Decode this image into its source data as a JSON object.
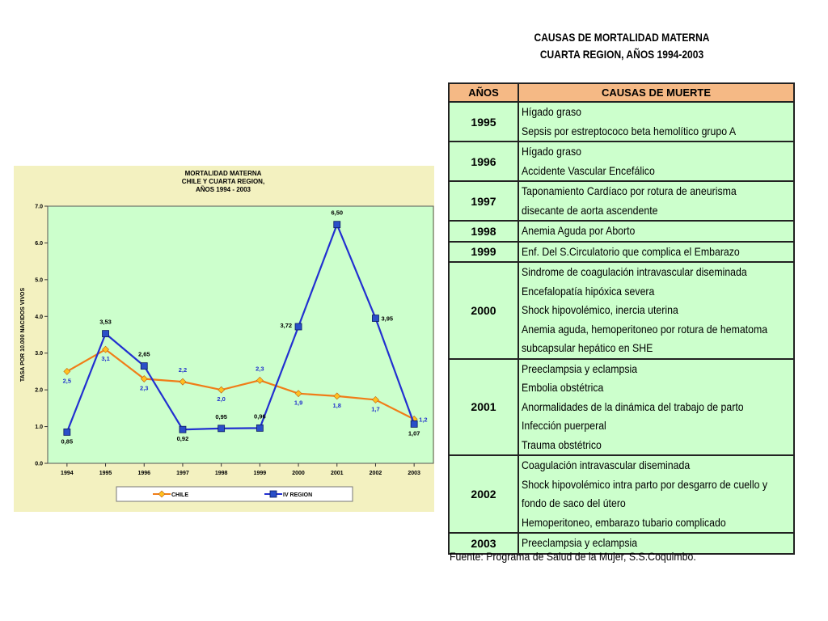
{
  "chart_data": {
    "type": "line",
    "title": [
      "MORTALIDAD MATERNA",
      "CHILE Y CUARTA REGION,",
      "AÑOS 1994 - 2003"
    ],
    "ylabel": "TASA POR 10.000 NACIDOS VIVOS",
    "xlabel": "",
    "ylim": [
      0,
      7
    ],
    "yticks": [
      "0.0",
      "1.0",
      "2.0",
      "3.0",
      "4.0",
      "5.0",
      "6.0",
      "7.0"
    ],
    "categories": [
      "1994",
      "1995",
      "1996",
      "1997",
      "1998",
      "1999",
      "2000",
      "2001",
      "2002",
      "2003"
    ],
    "legend_position": "bottom",
    "series": [
      {
        "name": "CHILE",
        "color": "#f07d18",
        "marker": "diamond",
        "values": [
          2.5,
          3.1,
          2.3,
          2.22,
          2.0,
          2.26,
          1.9,
          1.83,
          1.73,
          1.2
        ],
        "data_labels": [
          "2,5",
          "3,1",
          "2,3",
          "2,2",
          "2,0",
          "2,3",
          "1,9",
          "1,8",
          "1,7",
          "1,2"
        ],
        "label_color": "#2233cc"
      },
      {
        "name": "IV REGION",
        "color": "#2230d0",
        "marker": "square",
        "values": [
          0.85,
          3.53,
          2.65,
          0.92,
          0.95,
          0.96,
          3.72,
          6.5,
          3.95,
          1.07
        ],
        "data_labels": [
          "0,85",
          "3,53",
          "2,65",
          "0,92",
          "0,95",
          "0,96",
          "3,72",
          "6,50",
          "3,95",
          "1,07"
        ],
        "label_color": "#000000"
      }
    ],
    "plot_bg": "#ccffcc",
    "panel_bg": "#f3f1c0"
  },
  "table": {
    "title_line1": "CAUSAS DE MORTALIDAD MATERNA",
    "title_line2": "CUARTA REGION, AÑOS 1994-2003",
    "headers": [
      "AÑOS",
      "CAUSAS DE MUERTE"
    ],
    "rows": [
      {
        "year": "1995",
        "causes": [
          "Hígado graso",
          "Sepsis por estreptococo beta hemolítico grupo A"
        ]
      },
      {
        "year": "1996",
        "causes": [
          "Hígado graso",
          "Accidente Vascular Encefálico"
        ]
      },
      {
        "year": "1997",
        "causes": [
          "Taponamiento Cardíaco por rotura de aneurisma",
          "disecante de aorta ascendente"
        ]
      },
      {
        "year": "1998",
        "causes": [
          "Anemia Aguda por Aborto"
        ]
      },
      {
        "year": "1999",
        "causes": [
          "Enf. Del S.Circulatorio que complica el Embarazo"
        ]
      },
      {
        "year": "2000",
        "causes": [
          "Sindrome de coagulación intravascular diseminada",
          "Encefalopatía hipóxica severa",
          "Shock hipovolémico, inercia uterina",
          "Anemia aguda, hemoperitoneo por rotura de hematoma",
          "subcapsular hepático en SHE"
        ]
      },
      {
        "year": "2001",
        "causes": [
          "Preeclampsia y eclampsia",
          "Embolia obstétrica",
          "Anormalidades de la dinámica del trabajo de parto",
          "Infección puerperal",
          "Trauma obstétrico"
        ]
      },
      {
        "year": "2002",
        "causes": [
          "Coagulación intravascular diseminada",
          " Shock hipovolémico intra parto por desgarro de cuello y",
          "fondo de saco del útero",
          "Hemoperitoneo, embarazo tubario complicado"
        ]
      },
      {
        "year": "2003",
        "causes": [
          "Preeclampsia y eclampsia"
        ]
      }
    ],
    "source": "Fuente: Programa de Salud de la Mujer, S.S.Coquimbo."
  }
}
